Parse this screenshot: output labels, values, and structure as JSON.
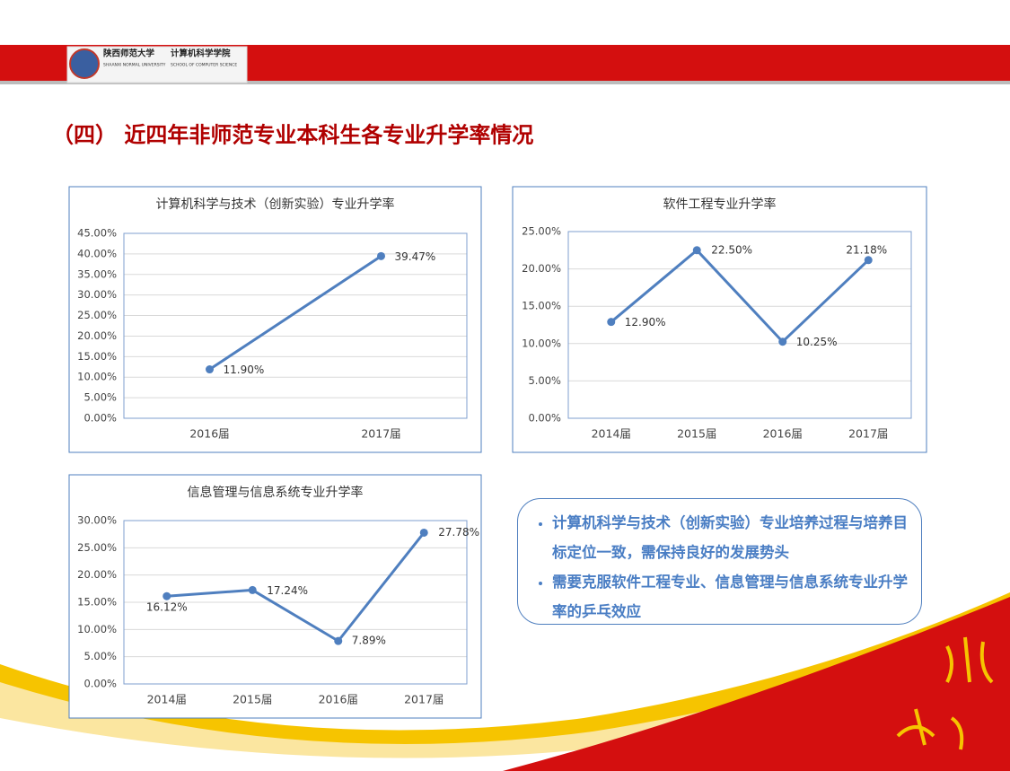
{
  "header": {
    "school_cn": "陕西师范大学",
    "college_cn": "计算机科学学院",
    "school_en": "SHAANXI NORMAL UNIVERSITY",
    "college_en": "SCHOOL OF COMPUTER SCIENCE",
    "title": "（四） 近四年非师范专业本科生各专业升学率情况"
  },
  "chart_data": [
    {
      "type": "line",
      "title": "计算机科学与技术（创新实验）专业升学率",
      "categories": [
        "2016届",
        "2017届"
      ],
      "values": [
        11.9,
        39.47
      ],
      "value_labels": [
        "11.90%",
        "39.47%"
      ],
      "color": "#4f7fbf",
      "ylim": [
        0,
        45
      ],
      "yticks": [
        {
          "value": 0,
          "label": "0.00%"
        },
        {
          "value": 5,
          "label": "5.00%"
        },
        {
          "value": 10,
          "label": "10.00%"
        },
        {
          "value": 15,
          "label": "15.00%"
        },
        {
          "value": 20,
          "label": "20.00%"
        },
        {
          "value": 25,
          "label": "25.00%"
        },
        {
          "value": 30,
          "label": "30.00%"
        },
        {
          "value": 35,
          "label": "35.00%"
        },
        {
          "value": 40,
          "label": "40.00%"
        },
        {
          "value": 45,
          "label": "45.00%"
        }
      ],
      "grid": true
    },
    {
      "type": "line",
      "title": "软件工程专业升学率",
      "categories": [
        "2014届",
        "2015届",
        "2016届",
        "2017届"
      ],
      "values": [
        12.9,
        22.5,
        10.25,
        21.18
      ],
      "value_labels": [
        "12.90%",
        "22.50%",
        "10.25%",
        "21.18%"
      ],
      "color": "#4f7fbf",
      "ylim": [
        0,
        25
      ],
      "yticks": [
        {
          "value": 0,
          "label": "0.00%"
        },
        {
          "value": 5,
          "label": "5.00%"
        },
        {
          "value": 10,
          "label": "10.00%"
        },
        {
          "value": 15,
          "label": "15.00%"
        },
        {
          "value": 20,
          "label": "20.00%"
        },
        {
          "value": 25,
          "label": "25.00%"
        }
      ],
      "grid": true
    },
    {
      "type": "line",
      "title": "信息管理与信息系统专业升学率",
      "categories": [
        "2014届",
        "2015届",
        "2016届",
        "2017届"
      ],
      "values": [
        16.12,
        17.24,
        7.89,
        27.78
      ],
      "value_labels": [
        "16.12%",
        "17.24%",
        "7.89%",
        "27.78%"
      ],
      "color": "#4f7fbf",
      "ylim": [
        0,
        30
      ],
      "yticks": [
        {
          "value": 0,
          "label": "0.00%"
        },
        {
          "value": 5,
          "label": "5.00%"
        },
        {
          "value": 10,
          "label": "10.00%"
        },
        {
          "value": 15,
          "label": "15.00%"
        },
        {
          "value": 20,
          "label": "20.00%"
        },
        {
          "value": 25,
          "label": "25.00%"
        },
        {
          "value": 30,
          "label": "30.00%"
        }
      ],
      "grid": true
    }
  ],
  "notes": [
    "计算机科学与技术（创新实验）专业培养过程与培养目标定位一致，需保持良好的发展势头",
    "需要克服软件工程专业、信息管理与信息系统专业升学率的乒乓效应"
  ]
}
